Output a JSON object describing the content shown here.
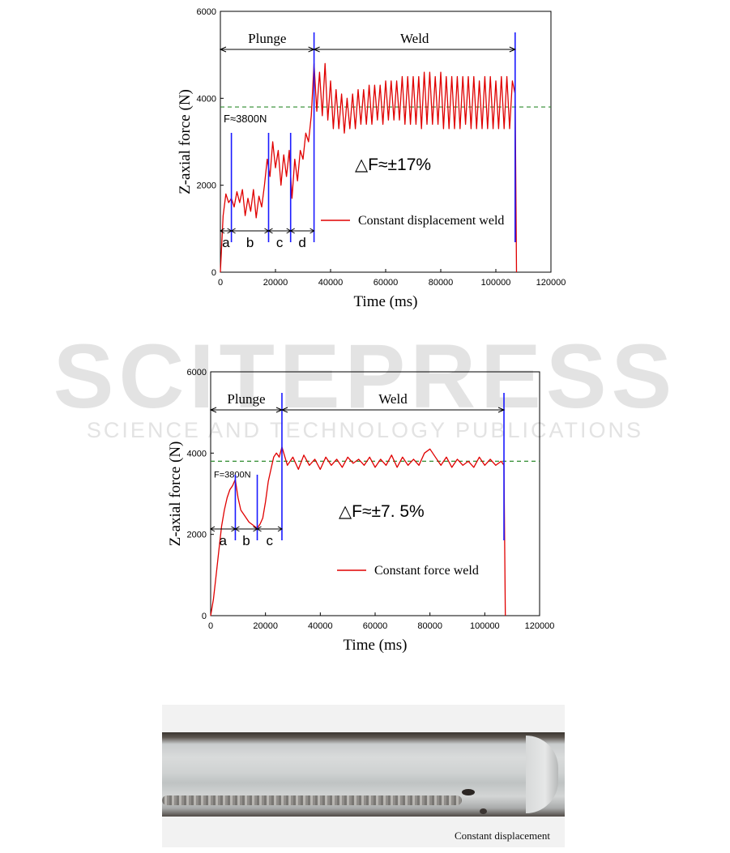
{
  "watermark": {
    "big": "SCITEPRESS",
    "small": "SCIENCE AND TECHNOLOGY PUBLICATIONS"
  },
  "chart_data": [
    {
      "type": "line",
      "xlabel": "Time (ms)",
      "ylabel": "Z-axial force (N)",
      "xlim": [
        0,
        120000
      ],
      "ylim": [
        0,
        6000
      ],
      "x_ticks": [
        "0",
        "20000",
        "40000",
        "60000",
        "80000",
        "100000",
        "120000"
      ],
      "y_ticks": [
        "0",
        "2000",
        "4000",
        "6000"
      ],
      "legend": "Constant displacement weld",
      "legend_position": "lower-right",
      "reference_line": {
        "value": 3800,
        "label": "F≈3800N",
        "color": "#2e8b2e"
      },
      "delta_label": "△F≈±17%",
      "phases": [
        {
          "label": "Plunge",
          "start": 0,
          "end": 34000
        },
        {
          "label": "Weld",
          "start": 34000,
          "end": 107000
        }
      ],
      "stages": [
        {
          "label": "a",
          "start": 0,
          "end": 4000
        },
        {
          "label": "b",
          "start": 4000,
          "end": 17500
        },
        {
          "label": "c",
          "start": 17500,
          "end": 25500
        },
        {
          "label": "d",
          "start": 25500,
          "end": 34000
        }
      ],
      "stage_marker_x": [
        4000,
        17500,
        25500,
        34000,
        107000
      ],
      "series": [
        {
          "name": "Constant displacement weld",
          "color": "#e00000",
          "x": [
            0,
            1000,
            2000,
            3000,
            4000,
            5000,
            6000,
            7000,
            8000,
            9000,
            10000,
            11000,
            12000,
            13000,
            14000,
            15000,
            16000,
            17000,
            18000,
            19000,
            20000,
            21000,
            22000,
            23000,
            24000,
            25000,
            26000,
            27000,
            28000,
            29000,
            30000,
            31000,
            32000,
            33000,
            34000,
            35000,
            36000,
            37000,
            38000,
            39000,
            40000,
            41000,
            42000,
            43000,
            44000,
            45000,
            46000,
            47000,
            48000,
            49000,
            50000,
            51000,
            52000,
            53000,
            54000,
            55000,
            56000,
            57000,
            58000,
            59000,
            60000,
            61000,
            62000,
            63000,
            64000,
            65000,
            66000,
            67000,
            68000,
            69000,
            70000,
            71000,
            72000,
            73000,
            74000,
            75000,
            76000,
            77000,
            78000,
            79000,
            80000,
            81000,
            82000,
            83000,
            84000,
            85000,
            86000,
            87000,
            88000,
            89000,
            90000,
            91000,
            92000,
            93000,
            94000,
            95000,
            96000,
            97000,
            98000,
            99000,
            100000,
            101000,
            102000,
            103000,
            104000,
            105000,
            106000,
            107000,
            107500
          ],
          "y": [
            0,
            1300,
            1800,
            1600,
            1700,
            1500,
            1850,
            1600,
            1900,
            1300,
            1700,
            1400,
            1900,
            1250,
            1750,
            1500,
            2000,
            2600,
            2200,
            3000,
            2400,
            2800,
            2000,
            2700,
            2200,
            2800,
            1700,
            2600,
            2100,
            2800,
            2600,
            3200,
            3000,
            3600,
            4800,
            3700,
            4600,
            3600,
            4800,
            3500,
            4400,
            3300,
            4200,
            3300,
            4100,
            3200,
            4000,
            3300,
            4100,
            3300,
            4200,
            3400,
            4200,
            3400,
            4300,
            3400,
            4300,
            3500,
            4300,
            3400,
            4400,
            3500,
            4400,
            3500,
            4400,
            3500,
            4500,
            3400,
            4500,
            3400,
            4500,
            3400,
            4500,
            3300,
            4600,
            3400,
            4600,
            3400,
            4500,
            3400,
            4600,
            3300,
            4500,
            3300,
            4500,
            3300,
            4500,
            3300,
            4500,
            3400,
            4500,
            3300,
            4500,
            3300,
            4400,
            3300,
            4500,
            3300,
            4500,
            3300,
            4400,
            3300,
            4500,
            3300,
            4500,
            3300,
            4400,
            4100,
            0
          ]
        }
      ]
    },
    {
      "type": "line",
      "xlabel": "Time (ms)",
      "ylabel": "Z-axial force (N)",
      "xlim": [
        0,
        120000
      ],
      "ylim": [
        0,
        6000
      ],
      "x_ticks": [
        "0",
        "20000",
        "40000",
        "60000",
        "80000",
        "100000",
        "120000"
      ],
      "y_ticks": [
        "0",
        "2000",
        "4000",
        "6000"
      ],
      "legend": "Constant force weld",
      "legend_position": "lower-right",
      "reference_line": {
        "value": 3800,
        "label": "F=3800N",
        "color": "#2e8b2e"
      },
      "delta_label": "△F≈±7. 5%",
      "phases": [
        {
          "label": "Plunge",
          "start": 0,
          "end": 26000
        },
        {
          "label": "Weld",
          "start": 26000,
          "end": 107000
        }
      ],
      "stages": [
        {
          "label": "a",
          "start": 0,
          "end": 9000
        },
        {
          "label": "b",
          "start": 9000,
          "end": 17000
        },
        {
          "label": "c",
          "start": 17000,
          "end": 26000
        }
      ],
      "stage_marker_x": [
        9000,
        17000,
        26000,
        107000
      ],
      "series": [
        {
          "name": "Constant force weld",
          "color": "#e00000",
          "x": [
            0,
            1000,
            2000,
            3000,
            4000,
            5000,
            6000,
            7000,
            8000,
            9000,
            10000,
            11000,
            12000,
            13000,
            14000,
            15000,
            16000,
            17000,
            18000,
            19000,
            20000,
            21000,
            22000,
            23000,
            24000,
            25000,
            26000,
            28000,
            30000,
            32000,
            34000,
            36000,
            38000,
            40000,
            42000,
            44000,
            46000,
            48000,
            50000,
            52000,
            54000,
            56000,
            58000,
            60000,
            62000,
            64000,
            66000,
            68000,
            70000,
            72000,
            74000,
            76000,
            78000,
            80000,
            82000,
            84000,
            86000,
            88000,
            90000,
            92000,
            94000,
            96000,
            98000,
            100000,
            102000,
            104000,
            106000,
            107000,
            107500
          ],
          "y": [
            0,
            400,
            1000,
            1600,
            2200,
            2600,
            2900,
            3100,
            3200,
            3350,
            2900,
            2600,
            2500,
            2400,
            2300,
            2250,
            2200,
            2150,
            2250,
            2400,
            2800,
            3300,
            3600,
            3900,
            4000,
            3900,
            4150,
            3700,
            3900,
            3600,
            3950,
            3700,
            3850,
            3600,
            3900,
            3700,
            3850,
            3650,
            3900,
            3750,
            3850,
            3700,
            3900,
            3650,
            3850,
            3700,
            3950,
            3650,
            3900,
            3700,
            3850,
            3700,
            4000,
            4100,
            3900,
            3700,
            3900,
            3650,
            3850,
            3700,
            3800,
            3650,
            3900,
            3700,
            3850,
            3700,
            3800,
            3700,
            0
          ]
        }
      ]
    }
  ],
  "photo": {
    "caption": "Constant displacement"
  }
}
